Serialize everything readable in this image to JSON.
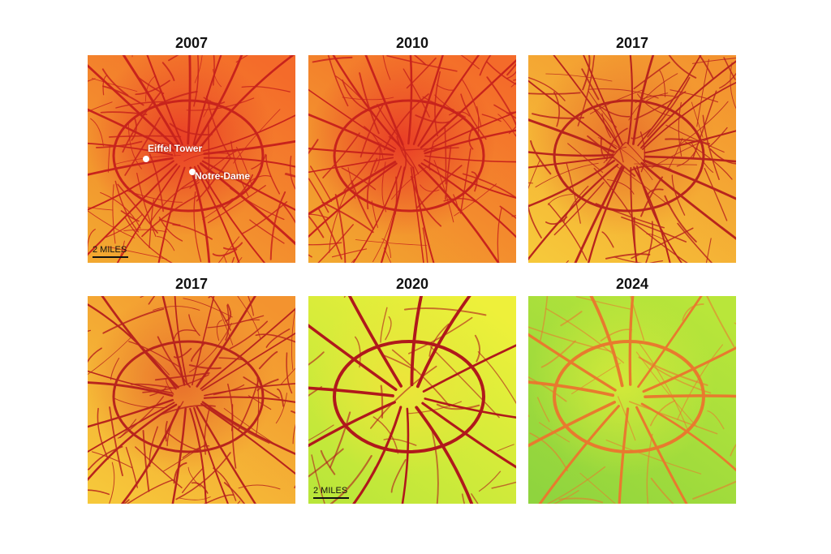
{
  "panels": [
    {
      "title": "2007",
      "palette": "hot"
    },
    {
      "title": "2010",
      "palette": "hot"
    },
    {
      "title": "2017",
      "palette": "warm"
    },
    {
      "title": "2017",
      "palette": "warm"
    },
    {
      "title": "2020",
      "palette": "cool"
    },
    {
      "title": "2024",
      "palette": "cooler"
    }
  ],
  "scale_label": "2 MILES",
  "landmarks": {
    "eiffel": "Eiffel Tower",
    "notre_dame": "Notre-Dame"
  },
  "colors": {
    "hot": {
      "bg1": "#f46b2a",
      "bg2": "#f2a830",
      "center": "#e83525",
      "road": "#c8231c"
    },
    "warm": {
      "bg1": "#f3932f",
      "bg2": "#f6c83a",
      "center": "#e86a2a",
      "road": "#b8241d"
    },
    "cool": {
      "bg1": "#eef03a",
      "bg2": "#b9e63a",
      "center": "#f0e43a",
      "road": "#b0181c"
    },
    "cooler": {
      "bg1": "#b9e63a",
      "bg2": "#8fd43e",
      "center": "#d8ea3a",
      "road": "#e87a2e"
    }
  }
}
